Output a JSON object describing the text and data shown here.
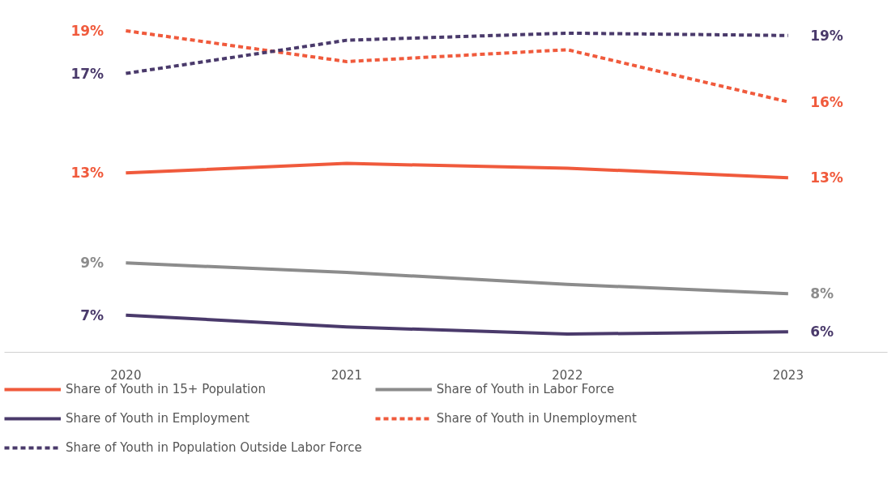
{
  "chart_data": {
    "type": "line",
    "categories": [
      "2020",
      "2021",
      "2022",
      "2023"
    ],
    "grid": false,
    "legend": "bottom",
    "tick_labels": "x",
    "series": [
      {
        "name": "Share of Youth in 15+ Population",
        "color": "#f05a3c",
        "line_style": "solid",
        "values": [
          13.0,
          13.4,
          13.2,
          12.8
        ],
        "value_labels": [
          "13%",
          null,
          null,
          "13%"
        ]
      },
      {
        "name": "Share of Youth in Labor Force",
        "color": "#8c8c8c",
        "line_style": "solid",
        "values": [
          9.2,
          8.8,
          8.3,
          7.9
        ],
        "value_labels": [
          "9%",
          null,
          null,
          "8%"
        ]
      },
      {
        "name": "Share of Youth in Employment",
        "color": "#4a3a6b",
        "line_style": "solid",
        "values": [
          7.0,
          6.5,
          6.2,
          6.3
        ],
        "value_labels": [
          "7%",
          null,
          null,
          "6%"
        ]
      },
      {
        "name": "Share of Youth in Unemployment",
        "color": "#f05a3c",
        "line_style": "dashed",
        "values": [
          19.0,
          17.7,
          18.2,
          16.0
        ],
        "value_labels": [
          "19%",
          null,
          null,
          "16%"
        ]
      },
      {
        "name": "Share of Youth in Population Outside Labor Force",
        "color": "#4a3a6b",
        "line_style": "dashed",
        "values": [
          17.2,
          18.6,
          18.9,
          18.8
        ],
        "value_labels": [
          "17%",
          null,
          null,
          "19%"
        ]
      }
    ]
  }
}
